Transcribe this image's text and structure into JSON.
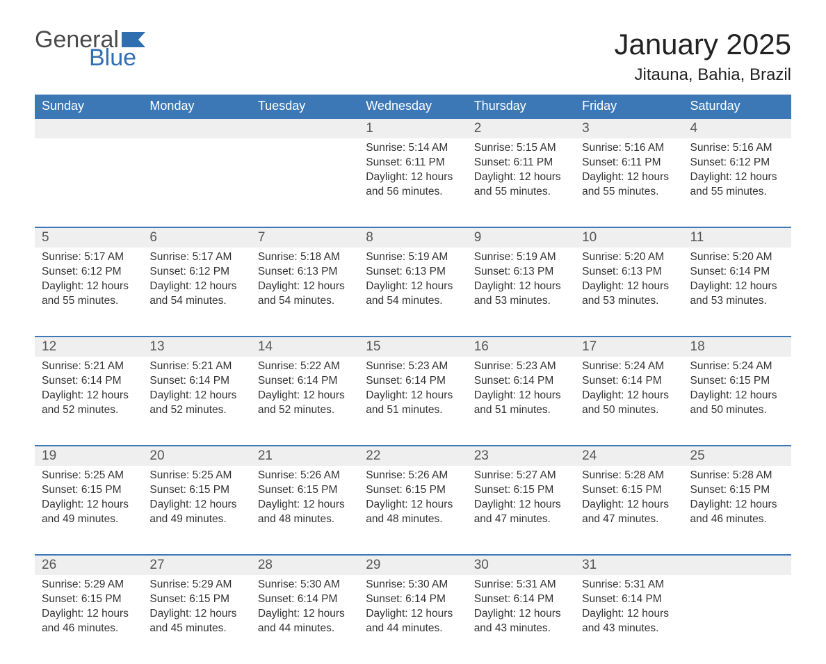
{
  "brand": {
    "word1": "General",
    "word2": "Blue",
    "color_primary": "#3b78b5",
    "color_text": "#333333"
  },
  "title": "January 2025",
  "location": "Jitauna, Bahia, Brazil",
  "weekdays": [
    "Sunday",
    "Monday",
    "Tuesday",
    "Wednesday",
    "Thursday",
    "Friday",
    "Saturday"
  ],
  "weeks": [
    [
      null,
      null,
      null,
      {
        "day": "1",
        "sunrise": "Sunrise: 5:14 AM",
        "sunset": "Sunset: 6:11 PM",
        "daylight": "Daylight: 12 hours and 56 minutes."
      },
      {
        "day": "2",
        "sunrise": "Sunrise: 5:15 AM",
        "sunset": "Sunset: 6:11 PM",
        "daylight": "Daylight: 12 hours and 55 minutes."
      },
      {
        "day": "3",
        "sunrise": "Sunrise: 5:16 AM",
        "sunset": "Sunset: 6:11 PM",
        "daylight": "Daylight: 12 hours and 55 minutes."
      },
      {
        "day": "4",
        "sunrise": "Sunrise: 5:16 AM",
        "sunset": "Sunset: 6:12 PM",
        "daylight": "Daylight: 12 hours and 55 minutes."
      }
    ],
    [
      {
        "day": "5",
        "sunrise": "Sunrise: 5:17 AM",
        "sunset": "Sunset: 6:12 PM",
        "daylight": "Daylight: 12 hours and 55 minutes."
      },
      {
        "day": "6",
        "sunrise": "Sunrise: 5:17 AM",
        "sunset": "Sunset: 6:12 PM",
        "daylight": "Daylight: 12 hours and 54 minutes."
      },
      {
        "day": "7",
        "sunrise": "Sunrise: 5:18 AM",
        "sunset": "Sunset: 6:13 PM",
        "daylight": "Daylight: 12 hours and 54 minutes."
      },
      {
        "day": "8",
        "sunrise": "Sunrise: 5:19 AM",
        "sunset": "Sunset: 6:13 PM",
        "daylight": "Daylight: 12 hours and 54 minutes."
      },
      {
        "day": "9",
        "sunrise": "Sunrise: 5:19 AM",
        "sunset": "Sunset: 6:13 PM",
        "daylight": "Daylight: 12 hours and 53 minutes."
      },
      {
        "day": "10",
        "sunrise": "Sunrise: 5:20 AM",
        "sunset": "Sunset: 6:13 PM",
        "daylight": "Daylight: 12 hours and 53 minutes."
      },
      {
        "day": "11",
        "sunrise": "Sunrise: 5:20 AM",
        "sunset": "Sunset: 6:14 PM",
        "daylight": "Daylight: 12 hours and 53 minutes."
      }
    ],
    [
      {
        "day": "12",
        "sunrise": "Sunrise: 5:21 AM",
        "sunset": "Sunset: 6:14 PM",
        "daylight": "Daylight: 12 hours and 52 minutes."
      },
      {
        "day": "13",
        "sunrise": "Sunrise: 5:21 AM",
        "sunset": "Sunset: 6:14 PM",
        "daylight": "Daylight: 12 hours and 52 minutes."
      },
      {
        "day": "14",
        "sunrise": "Sunrise: 5:22 AM",
        "sunset": "Sunset: 6:14 PM",
        "daylight": "Daylight: 12 hours and 52 minutes."
      },
      {
        "day": "15",
        "sunrise": "Sunrise: 5:23 AM",
        "sunset": "Sunset: 6:14 PM",
        "daylight": "Daylight: 12 hours and 51 minutes."
      },
      {
        "day": "16",
        "sunrise": "Sunrise: 5:23 AM",
        "sunset": "Sunset: 6:14 PM",
        "daylight": "Daylight: 12 hours and 51 minutes."
      },
      {
        "day": "17",
        "sunrise": "Sunrise: 5:24 AM",
        "sunset": "Sunset: 6:14 PM",
        "daylight": "Daylight: 12 hours and 50 minutes."
      },
      {
        "day": "18",
        "sunrise": "Sunrise: 5:24 AM",
        "sunset": "Sunset: 6:15 PM",
        "daylight": "Daylight: 12 hours and 50 minutes."
      }
    ],
    [
      {
        "day": "19",
        "sunrise": "Sunrise: 5:25 AM",
        "sunset": "Sunset: 6:15 PM",
        "daylight": "Daylight: 12 hours and 49 minutes."
      },
      {
        "day": "20",
        "sunrise": "Sunrise: 5:25 AM",
        "sunset": "Sunset: 6:15 PM",
        "daylight": "Daylight: 12 hours and 49 minutes."
      },
      {
        "day": "21",
        "sunrise": "Sunrise: 5:26 AM",
        "sunset": "Sunset: 6:15 PM",
        "daylight": "Daylight: 12 hours and 48 minutes."
      },
      {
        "day": "22",
        "sunrise": "Sunrise: 5:26 AM",
        "sunset": "Sunset: 6:15 PM",
        "daylight": "Daylight: 12 hours and 48 minutes."
      },
      {
        "day": "23",
        "sunrise": "Sunrise: 5:27 AM",
        "sunset": "Sunset: 6:15 PM",
        "daylight": "Daylight: 12 hours and 47 minutes."
      },
      {
        "day": "24",
        "sunrise": "Sunrise: 5:28 AM",
        "sunset": "Sunset: 6:15 PM",
        "daylight": "Daylight: 12 hours and 47 minutes."
      },
      {
        "day": "25",
        "sunrise": "Sunrise: 5:28 AM",
        "sunset": "Sunset: 6:15 PM",
        "daylight": "Daylight: 12 hours and 46 minutes."
      }
    ],
    [
      {
        "day": "26",
        "sunrise": "Sunrise: 5:29 AM",
        "sunset": "Sunset: 6:15 PM",
        "daylight": "Daylight: 12 hours and 46 minutes."
      },
      {
        "day": "27",
        "sunrise": "Sunrise: 5:29 AM",
        "sunset": "Sunset: 6:15 PM",
        "daylight": "Daylight: 12 hours and 45 minutes."
      },
      {
        "day": "28",
        "sunrise": "Sunrise: 5:30 AM",
        "sunset": "Sunset: 6:14 PM",
        "daylight": "Daylight: 12 hours and 44 minutes."
      },
      {
        "day": "29",
        "sunrise": "Sunrise: 5:30 AM",
        "sunset": "Sunset: 6:14 PM",
        "daylight": "Daylight: 12 hours and 44 minutes."
      },
      {
        "day": "30",
        "sunrise": "Sunrise: 5:31 AM",
        "sunset": "Sunset: 6:14 PM",
        "daylight": "Daylight: 12 hours and 43 minutes."
      },
      {
        "day": "31",
        "sunrise": "Sunrise: 5:31 AM",
        "sunset": "Sunset: 6:14 PM",
        "daylight": "Daylight: 12 hours and 43 minutes."
      },
      null
    ]
  ]
}
